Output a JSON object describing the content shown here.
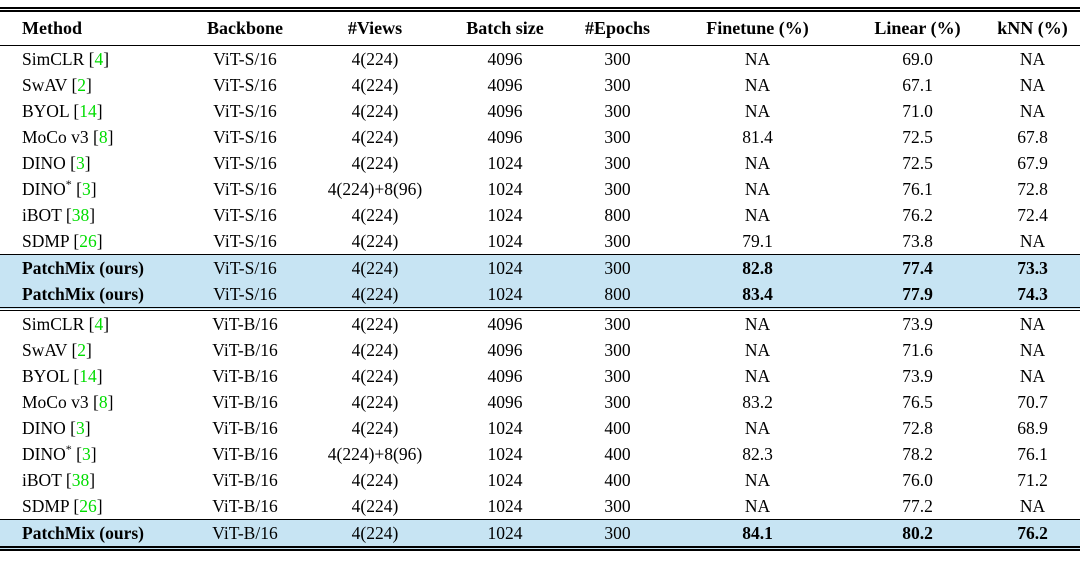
{
  "table": {
    "columns": [
      "Method",
      "Backbone",
      "#Views",
      "Batch size",
      "#Epochs",
      "Finetune (%)",
      "Linear (%)",
      "kNN (%)"
    ],
    "colors": {
      "highlight": "#c7e4f3",
      "citation": "#00dd00",
      "rule": "#000000"
    },
    "groups": [
      {
        "name": "vit-s-16-block",
        "rows": [
          {
            "method": "SimCLR",
            "cite": "4",
            "sup": "",
            "backbone": "ViT-S/16",
            "views": "4(224)",
            "batch": "4096",
            "epochs": "300",
            "finetune": "NA",
            "linear": "69.0",
            "knn": "NA",
            "highlight": false,
            "bold": false,
            "rule_above": false
          },
          {
            "method": "SwAV",
            "cite": "2",
            "sup": "",
            "backbone": "ViT-S/16",
            "views": "4(224)",
            "batch": "4096",
            "epochs": "300",
            "finetune": "NA",
            "linear": "67.1",
            "knn": "NA",
            "highlight": false,
            "bold": false,
            "rule_above": false
          },
          {
            "method": "BYOL",
            "cite": "14",
            "sup": "",
            "backbone": "ViT-S/16",
            "views": "4(224)",
            "batch": "4096",
            "epochs": "300",
            "finetune": "NA",
            "linear": "71.0",
            "knn": "NA",
            "highlight": false,
            "bold": false,
            "rule_above": false
          },
          {
            "method": "MoCo v3",
            "cite": "8",
            "sup": "",
            "backbone": "ViT-S/16",
            "views": "4(224)",
            "batch": "4096",
            "epochs": "300",
            "finetune": "81.4",
            "linear": "72.5",
            "knn": "67.8",
            "highlight": false,
            "bold": false,
            "rule_above": false
          },
          {
            "method": "DINO",
            "cite": "3",
            "sup": "",
            "backbone": "ViT-S/16",
            "views": "4(224)",
            "batch": "1024",
            "epochs": "300",
            "finetune": "NA",
            "linear": "72.5",
            "knn": "67.9",
            "highlight": false,
            "bold": false,
            "rule_above": false
          },
          {
            "method": "DINO",
            "cite": "3",
            "sup": "*",
            "backbone": "ViT-S/16",
            "views": "4(224)+8(96)",
            "batch": "1024",
            "epochs": "300",
            "finetune": "NA",
            "linear": "76.1",
            "knn": "72.8",
            "highlight": false,
            "bold": false,
            "rule_above": false
          },
          {
            "method": "iBOT",
            "cite": "38",
            "sup": "",
            "backbone": "ViT-S/16",
            "views": "4(224)",
            "batch": "1024",
            "epochs": "800",
            "finetune": "NA",
            "linear": "76.2",
            "knn": "72.4",
            "highlight": false,
            "bold": false,
            "rule_above": false
          },
          {
            "method": "SDMP",
            "cite": "26",
            "sup": "",
            "backbone": "ViT-S/16",
            "views": "4(224)",
            "batch": "1024",
            "epochs": "300",
            "finetune": "79.1",
            "linear": "73.8",
            "knn": "NA",
            "highlight": false,
            "bold": false,
            "rule_above": false
          },
          {
            "method": "PatchMix (ours)",
            "cite": "",
            "sup": "",
            "backbone": "ViT-S/16",
            "views": "4(224)",
            "batch": "1024",
            "epochs": "300",
            "finetune": "82.8",
            "linear": "77.4",
            "knn": "73.3",
            "highlight": true,
            "bold": true,
            "rule_above": true
          },
          {
            "method": "PatchMix (ours)",
            "cite": "",
            "sup": "",
            "backbone": "ViT-S/16",
            "views": "4(224)",
            "batch": "1024",
            "epochs": "800",
            "finetune": "83.4",
            "linear": "77.9",
            "knn": "74.3",
            "highlight": true,
            "bold": true,
            "rule_above": false
          }
        ]
      },
      {
        "name": "vit-b-16-block",
        "rows": [
          {
            "method": "SimCLR",
            "cite": "4",
            "sup": "",
            "backbone": "ViT-B/16",
            "views": "4(224)",
            "batch": "4096",
            "epochs": "300",
            "finetune": "NA",
            "linear": "73.9",
            "knn": "NA",
            "highlight": false,
            "bold": false,
            "rule_above": false
          },
          {
            "method": "SwAV",
            "cite": "2",
            "sup": "",
            "backbone": "ViT-B/16",
            "views": "4(224)",
            "batch": "4096",
            "epochs": "300",
            "finetune": "NA",
            "linear": "71.6",
            "knn": "NA",
            "highlight": false,
            "bold": false,
            "rule_above": false
          },
          {
            "method": "BYOL",
            "cite": "14",
            "sup": "",
            "backbone": "ViT-B/16",
            "views": "4(224)",
            "batch": "4096",
            "epochs": "300",
            "finetune": "NA",
            "linear": "73.9",
            "knn": "NA",
            "highlight": false,
            "bold": false,
            "rule_above": false
          },
          {
            "method": "MoCo v3",
            "cite": "8",
            "sup": "",
            "backbone": "ViT-B/16",
            "views": "4(224)",
            "batch": "4096",
            "epochs": "300",
            "finetune": "83.2",
            "linear": "76.5",
            "knn": "70.7",
            "highlight": false,
            "bold": false,
            "rule_above": false
          },
          {
            "method": "DINO",
            "cite": "3",
            "sup": "",
            "backbone": "ViT-B/16",
            "views": "4(224)",
            "batch": "1024",
            "epochs": "400",
            "finetune": "NA",
            "linear": "72.8",
            "knn": "68.9",
            "highlight": false,
            "bold": false,
            "rule_above": false
          },
          {
            "method": "DINO",
            "cite": "3",
            "sup": "*",
            "backbone": "ViT-B/16",
            "views": "4(224)+8(96)",
            "batch": "1024",
            "epochs": "400",
            "finetune": "82.3",
            "linear": "78.2",
            "knn": "76.1",
            "highlight": false,
            "bold": false,
            "rule_above": false
          },
          {
            "method": "iBOT",
            "cite": "38",
            "sup": "",
            "backbone": "ViT-B/16",
            "views": "4(224)",
            "batch": "1024",
            "epochs": "400",
            "finetune": "NA",
            "linear": "76.0",
            "knn": "71.2",
            "highlight": false,
            "bold": false,
            "rule_above": false
          },
          {
            "method": "SDMP",
            "cite": "26",
            "sup": "",
            "backbone": "ViT-B/16",
            "views": "4(224)",
            "batch": "1024",
            "epochs": "300",
            "finetune": "NA",
            "linear": "77.2",
            "knn": "NA",
            "highlight": false,
            "bold": false,
            "rule_above": false
          },
          {
            "method": "PatchMix (ours)",
            "cite": "",
            "sup": "",
            "backbone": "ViT-B/16",
            "views": "4(224)",
            "batch": "1024",
            "epochs": "300",
            "finetune": "84.1",
            "linear": "80.2",
            "knn": "76.2",
            "highlight": true,
            "bold": true,
            "rule_above": true
          }
        ]
      }
    ]
  }
}
